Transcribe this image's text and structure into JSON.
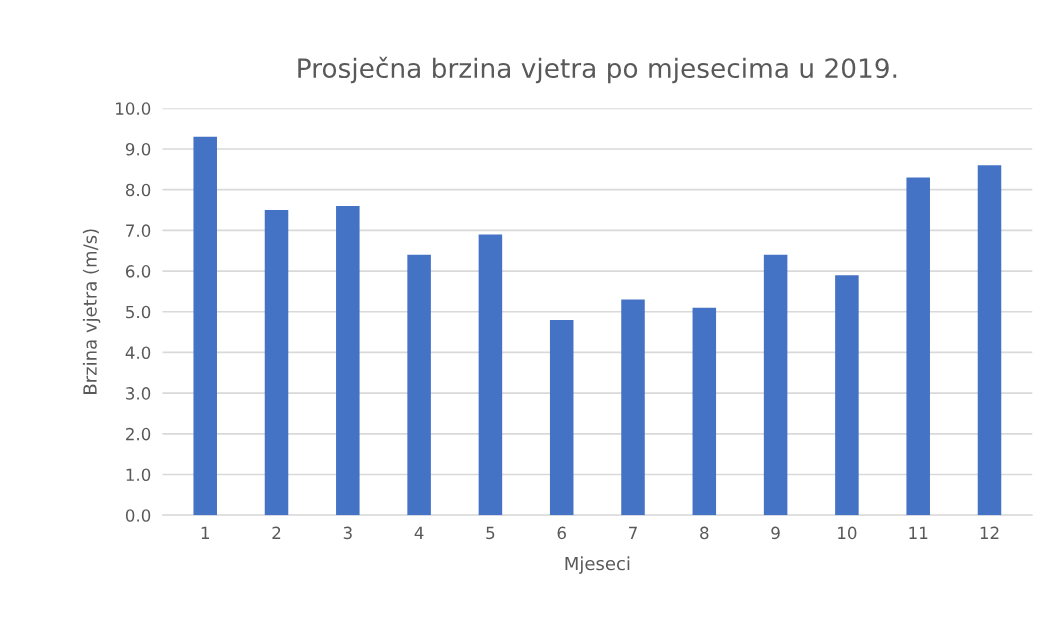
{
  "chart_data": {
    "type": "bar",
    "title": "Prosječna brzina vjetra po mjesecima u 2019.",
    "xlabel": "Mjeseci",
    "ylabel": "Brzina vjetra (m/s)",
    "categories": [
      "1",
      "2",
      "3",
      "4",
      "5",
      "6",
      "7",
      "8",
      "9",
      "10",
      "11",
      "12"
    ],
    "values": [
      9.3,
      7.5,
      7.6,
      6.4,
      6.9,
      4.8,
      5.3,
      5.1,
      6.4,
      5.9,
      8.3,
      8.6
    ],
    "color": "#4472c4",
    "ylim": [
      0,
      10
    ],
    "yticks": [
      {
        "value": 0,
        "label": "0.0"
      },
      {
        "value": 1,
        "label": "1.0"
      },
      {
        "value": 2,
        "label": "2.0"
      },
      {
        "value": 3,
        "label": "3.0"
      },
      {
        "value": 4,
        "label": "4.0"
      },
      {
        "value": 5,
        "label": "5.0"
      },
      {
        "value": 6,
        "label": "6.0"
      },
      {
        "value": 7,
        "label": "7.0"
      },
      {
        "value": 8,
        "label": "8.0"
      },
      {
        "value": 9,
        "label": "9.0"
      },
      {
        "value": 10,
        "label": "10.0"
      }
    ],
    "grid": "y"
  }
}
